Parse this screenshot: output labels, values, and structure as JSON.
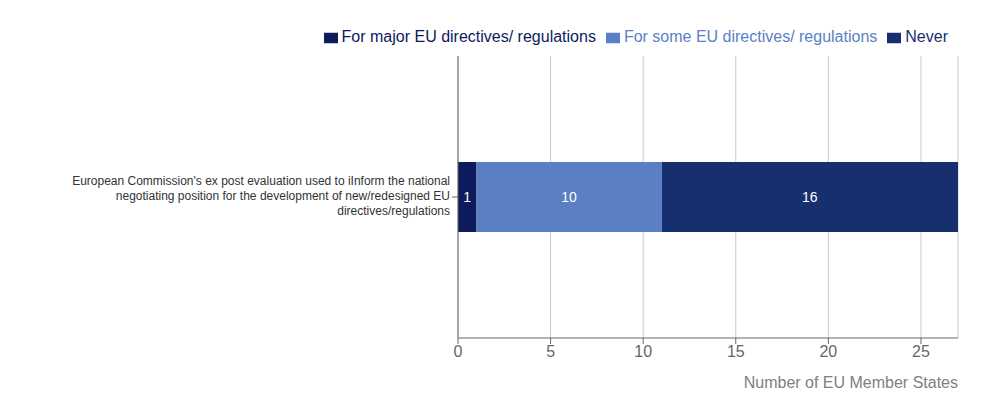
{
  "chart_data": {
    "type": "bar",
    "orientation": "horizontal",
    "stacked": true,
    "categories": [
      "European Commission's ex post evaluation used to iInform the national\nnegotiating position for the development of new/redesigned EU\ndirectives/regulations"
    ],
    "series": [
      {
        "name": "For major EU directives/ regulations",
        "color": "#0d1a5c",
        "values": [
          1
        ]
      },
      {
        "name": "For some EU directives/ regulations",
        "color": "#5b7fc4",
        "values": [
          10
        ]
      },
      {
        "name": "Never",
        "color": "#162f6e",
        "values": [
          16
        ]
      }
    ],
    "xlabel": "Number of EU Member States",
    "xlim": [
      0,
      27
    ],
    "xticks": [
      0,
      5,
      10,
      15,
      20,
      25
    ],
    "grid": true,
    "data_labels": true
  }
}
